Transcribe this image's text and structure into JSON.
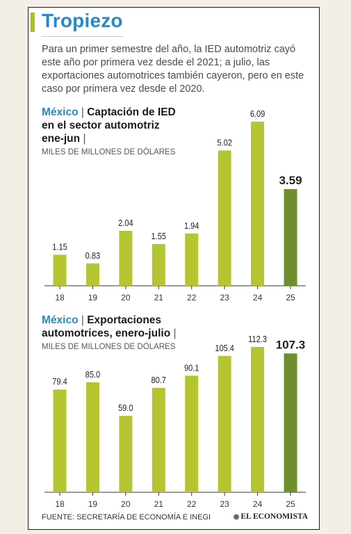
{
  "header": {
    "title": "Tropiezo",
    "intro": "Para un primer semestre del año, la IED automotriz cayó este año por primera vez desde el 2021; a julio, las exportaciones automotrices también cayeron, pero en este caso por primera vez desde el 2020."
  },
  "chart1_header": {
    "country": "México",
    "title": "Captación de IED en el sector automotriz ene-jun",
    "units": "MILES DE MILLONES DE DÓLARES"
  },
  "chart2_header": {
    "country": "México",
    "title": "Exportaciones automotrices, enero-julio",
    "units": "MILES DE MILLONES DE DÓLARES"
  },
  "footer": {
    "source": "FUENTE: SECRETARÍA DE ECONOMÍA E INEGI",
    "logo": "EL ECONOMISTA"
  },
  "colors": {
    "bar": "#b5c532",
    "bar_highlight": "#6f8f2f",
    "title": "#2a88c6"
  },
  "chart_data": [
    {
      "type": "bar",
      "title": "Captación de IED en el sector automotriz ene-jun",
      "ylabel": "MILES DE MILLONES DE DÓLARES",
      "categories": [
        "18",
        "19",
        "20",
        "21",
        "22",
        "23",
        "24",
        "25"
      ],
      "values": [
        1.15,
        0.83,
        2.04,
        1.55,
        1.94,
        5.02,
        6.09,
        3.59
      ],
      "value_labels": [
        "1.15",
        "0.83",
        "2.04",
        "1.55",
        "1.94",
        "5.02",
        "6.09",
        "3.59"
      ],
      "highlight_index": 7,
      "ylim": [
        0,
        6.09
      ]
    },
    {
      "type": "bar",
      "title": "Exportaciones automotrices, enero-julio",
      "ylabel": "MILES DE MILLONES DE DÓLARES",
      "categories": [
        "18",
        "19",
        "20",
        "21",
        "22",
        "23",
        "24",
        "25"
      ],
      "values": [
        79.4,
        85.0,
        59.0,
        80.7,
        90.1,
        105.4,
        112.3,
        107.3
      ],
      "value_labels": [
        "79.4",
        "85.0",
        "59.0",
        "80.7",
        "90.1",
        "105.4",
        "112.3",
        "107.3"
      ],
      "highlight_index": 7,
      "ylim": [
        0,
        112.3
      ]
    }
  ]
}
